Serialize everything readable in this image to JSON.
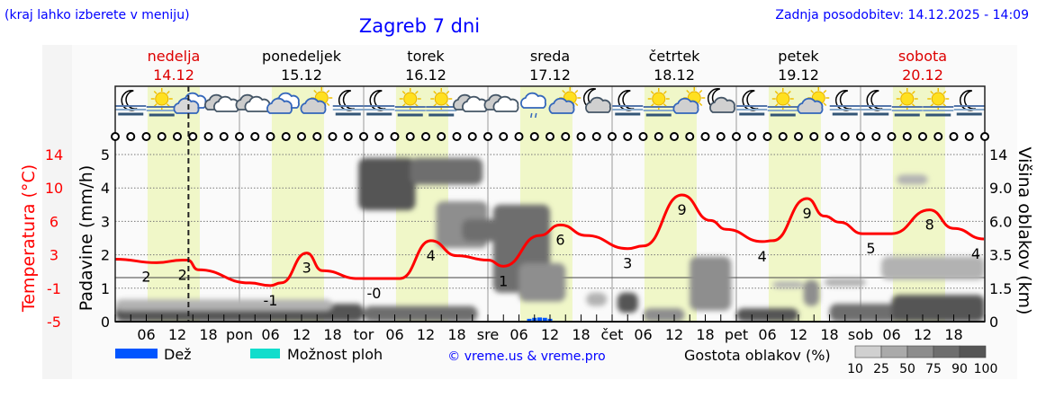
{
  "header": {
    "location_hint": "(kraj lahko izberete v meniju)",
    "title": "Zagreb 7 dni",
    "updated": "Zadnja posodobitev: 14.12.2025 - 14:09"
  },
  "days": [
    {
      "name": "nedelja",
      "date": "14.12",
      "short": "",
      "weekend": true
    },
    {
      "name": "ponedeljek",
      "date": "15.12",
      "short": "pon",
      "weekend": false
    },
    {
      "name": "torek",
      "date": "16.12",
      "short": "tor",
      "weekend": false
    },
    {
      "name": "sreda",
      "date": "17.12",
      "short": "sre",
      "weekend": false
    },
    {
      "name": "četrtek",
      "date": "18.12",
      "short": "čet",
      "weekend": false
    },
    {
      "name": "petek",
      "date": "19.12",
      "short": "pet",
      "weekend": false
    },
    {
      "name": "sobota",
      "date": "20.12",
      "short": "sob",
      "weekend": true
    }
  ],
  "hour_labels": [
    "06",
    "12",
    "18"
  ],
  "weather_icons": [
    "moon-fog",
    "sun-fog",
    "partly-cloudy",
    "overcast",
    "overcast",
    "partly-cloudy",
    "sun-cloud",
    "moon-fog",
    "moon-fog",
    "sun-fog",
    "sun-fog",
    "overcast",
    "overcast",
    "cloud-light-rain",
    "sun-cloud",
    "moon-cloud",
    "moon-fog",
    "sun-fog",
    "sun-cloud",
    "moon-cloud",
    "moon-fog",
    "sun-fog",
    "sun-cloud",
    "moon-fog",
    "moon-fog",
    "sun-fog",
    "sun-fog",
    "moon-fog"
  ],
  "colors": {
    "temperature": "#ff0000",
    "rain": "#0055ff",
    "showers": "#11ddcc",
    "daylight": "#f0f7c8",
    "title": "#0000ff",
    "weekend": "#dd0000"
  },
  "chart_data": {
    "type": "meteogram",
    "title": "Zagreb 7 dni",
    "now": "14.12 14:09",
    "daylight": {
      "sunrise": "06:15",
      "sunset": "16:20"
    },
    "axes": {
      "temperature": {
        "label": "Temperatura (°C)",
        "ticks": [
          "14",
          "10",
          "6",
          "3",
          "-1",
          "-5"
        ],
        "range": [
          -5,
          14
        ]
      },
      "precipitation": {
        "label": "Padavine (mm/h)",
        "ticks": [
          "0",
          "1",
          "2",
          "3",
          "4",
          "5"
        ],
        "range": [
          0,
          5
        ]
      },
      "cloud_height": {
        "label": "Višina oblakov (km)",
        "ticks": [
          "0",
          "1.5",
          "3.5",
          "6.0",
          "9.0",
          "14"
        ]
      }
    },
    "temperature": [
      [
        "14.12 00:00",
        2.1
      ],
      [
        "14.12 08:00",
        1.7
      ],
      [
        "14.12 13:00",
        2.0
      ],
      [
        "14.12 14:00",
        2.0
      ],
      [
        "14.12 16:00",
        0.9
      ],
      [
        "15.12 02:00",
        -0.6
      ],
      [
        "15.12 06:00",
        -0.9
      ],
      [
        "15.12 08:00",
        -0.6
      ],
      [
        "15.12 13:00",
        2.8
      ],
      [
        "15.12 16:00",
        0.8
      ],
      [
        "15.12 23:00",
        -0.1
      ],
      [
        "16.12 07:00",
        -0.1
      ],
      [
        "16.12 13:00",
        4.2
      ],
      [
        "16.12 18:00",
        2.5
      ],
      [
        "17.12 00:00",
        2.0
      ],
      [
        "17.12 03:00",
        1.3
      ],
      [
        "17.12 10:00",
        4.8
      ],
      [
        "17.12 14:00",
        6.0
      ],
      [
        "17.12 19:00",
        4.8
      ],
      [
        "18.12 03:00",
        3.3
      ],
      [
        "18.12 06:00",
        3.6
      ],
      [
        "18.12 13:30",
        9.4
      ],
      [
        "18.12 19:00",
        6.5
      ],
      [
        "18.12 22:00",
        5.5
      ],
      [
        "19.12 05:00",
        4.1
      ],
      [
        "19.12 07:00",
        4.2
      ],
      [
        "19.12 13:40",
        9.0
      ],
      [
        "19.12 17:00",
        7.0
      ],
      [
        "19.12 20:00",
        6.3
      ],
      [
        "20.12 00:25",
        5.0
      ],
      [
        "20.12 06:00",
        5.0
      ],
      [
        "20.12 13:20",
        7.7
      ],
      [
        "20.12 18:00",
        5.6
      ],
      [
        "20.12 23:50",
        4.4
      ]
    ],
    "temperature_labels": [
      [
        "14.12 06:00",
        "2"
      ],
      [
        "14.12 13:00",
        "2"
      ],
      [
        "15.12 06:00",
        "-1"
      ],
      [
        "15.12 13:00",
        "3"
      ],
      [
        "16.12 02:00",
        "-0"
      ],
      [
        "16.12 13:00",
        "4"
      ],
      [
        "17.12 03:00",
        "1"
      ],
      [
        "17.12 14:00",
        "6"
      ],
      [
        "18.12 03:00",
        "3"
      ],
      [
        "18.12 13:30",
        "9"
      ],
      [
        "19.12 05:00",
        "4"
      ],
      [
        "19.12 13:40",
        "9"
      ],
      [
        "20.12 02:00",
        "5"
      ],
      [
        "20.12 13:20",
        "8"
      ],
      [
        "20.12 23:59",
        "4"
      ]
    ],
    "precipitation": [
      [
        "17.12 08:00",
        0.03
      ],
      [
        "17.12 09:00",
        0.06
      ],
      [
        "17.12 10:00",
        0.07
      ],
      [
        "17.12 11:00",
        0.06
      ],
      [
        "17.12 12:00",
        0.03
      ]
    ],
    "clouds": [
      {
        "from": "14.12 00:00",
        "to": "16.12 00:00",
        "base": 0,
        "top": 0.8,
        "density": 90
      },
      {
        "from": "14.12 00:00",
        "to": "15.12 18:00",
        "base": 0.5,
        "top": 1.0,
        "density": 25
      },
      {
        "from": "16.12 00:00",
        "to": "16.12 22:00",
        "base": 0,
        "top": 0.7,
        "density": 75
      },
      {
        "from": "15.12 23:00",
        "to": "16.12 10:00",
        "base": 7.0,
        "top": 13.5,
        "density": 90
      },
      {
        "from": "16.12 09:00",
        "to": "16.12 23:00",
        "base": 9.5,
        "top": 13.5,
        "density": 75
      },
      {
        "from": "16.12 14:00",
        "to": "17.12 00:00",
        "base": 4.0,
        "top": 7.8,
        "density": 50
      },
      {
        "from": "16.12 19:00",
        "to": "17.12 12:00",
        "base": 4.5,
        "top": 6.2,
        "density": 75
      },
      {
        "from": "17.12 01:00",
        "to": "17.12 12:00",
        "base": 1.3,
        "top": 7.5,
        "density": 75
      },
      {
        "from": "17.12 06:00",
        "to": "17.12 15:00",
        "base": 0.9,
        "top": 3.0,
        "density": 50
      },
      {
        "from": "17.12 19:00",
        "to": "17.12 23:00",
        "base": 0.7,
        "top": 1.3,
        "density": 25
      },
      {
        "from": "18.12 01:00",
        "to": "18.12 05:00",
        "base": 0.4,
        "top": 1.3,
        "density": 90
      },
      {
        "from": "18.12 06:00",
        "to": "18.12 14:00",
        "base": 0,
        "top": 0.6,
        "density": 50
      },
      {
        "from": "18.12 15:00",
        "to": "18.12 23:00",
        "base": 0.5,
        "top": 3.4,
        "density": 50
      },
      {
        "from": "19.12 00:00",
        "to": "19.12 12:00",
        "base": 0,
        "top": 0.6,
        "density": 90
      },
      {
        "from": "19.12 07:00",
        "to": "19.12 13:00",
        "base": 1.5,
        "top": 1.9,
        "density": 25
      },
      {
        "from": "19.12 13:00",
        "to": "19.12 16:00",
        "base": 0.7,
        "top": 2.0,
        "density": 50
      },
      {
        "from": "19.12 17:00",
        "to": "20.12 01:00",
        "base": 1.6,
        "top": 2.1,
        "density": 25
      },
      {
        "from": "20.12 07:00",
        "to": "20.12 13:00",
        "base": 9.5,
        "top": 11.0,
        "density": 25
      },
      {
        "from": "20.12 04:00",
        "to": "20.12 23:59",
        "base": 2.0,
        "top": 3.4,
        "density": 25
      },
      {
        "from": "19.12 18:00",
        "to": "20.12 23:59",
        "base": 0,
        "top": 0.8,
        "density": 75
      },
      {
        "from": "20.12 06:00",
        "to": "20.12 23:59",
        "base": 0,
        "top": 1.2,
        "density": 90
      }
    ],
    "density_scale": {
      "label": "Gostota oblakov (%)",
      "ticks": [
        "10",
        "25",
        "50",
        "75",
        "90",
        "100"
      ],
      "colors": [
        "#d0d0d0",
        "#aaaaaa",
        "#8c8c8c",
        "#6e6e6e",
        "#555555"
      ]
    }
  },
  "legend": {
    "rain": "Dež",
    "showers": "Možnost ploh",
    "credit": "© vreme.us & vreme.pro"
  }
}
